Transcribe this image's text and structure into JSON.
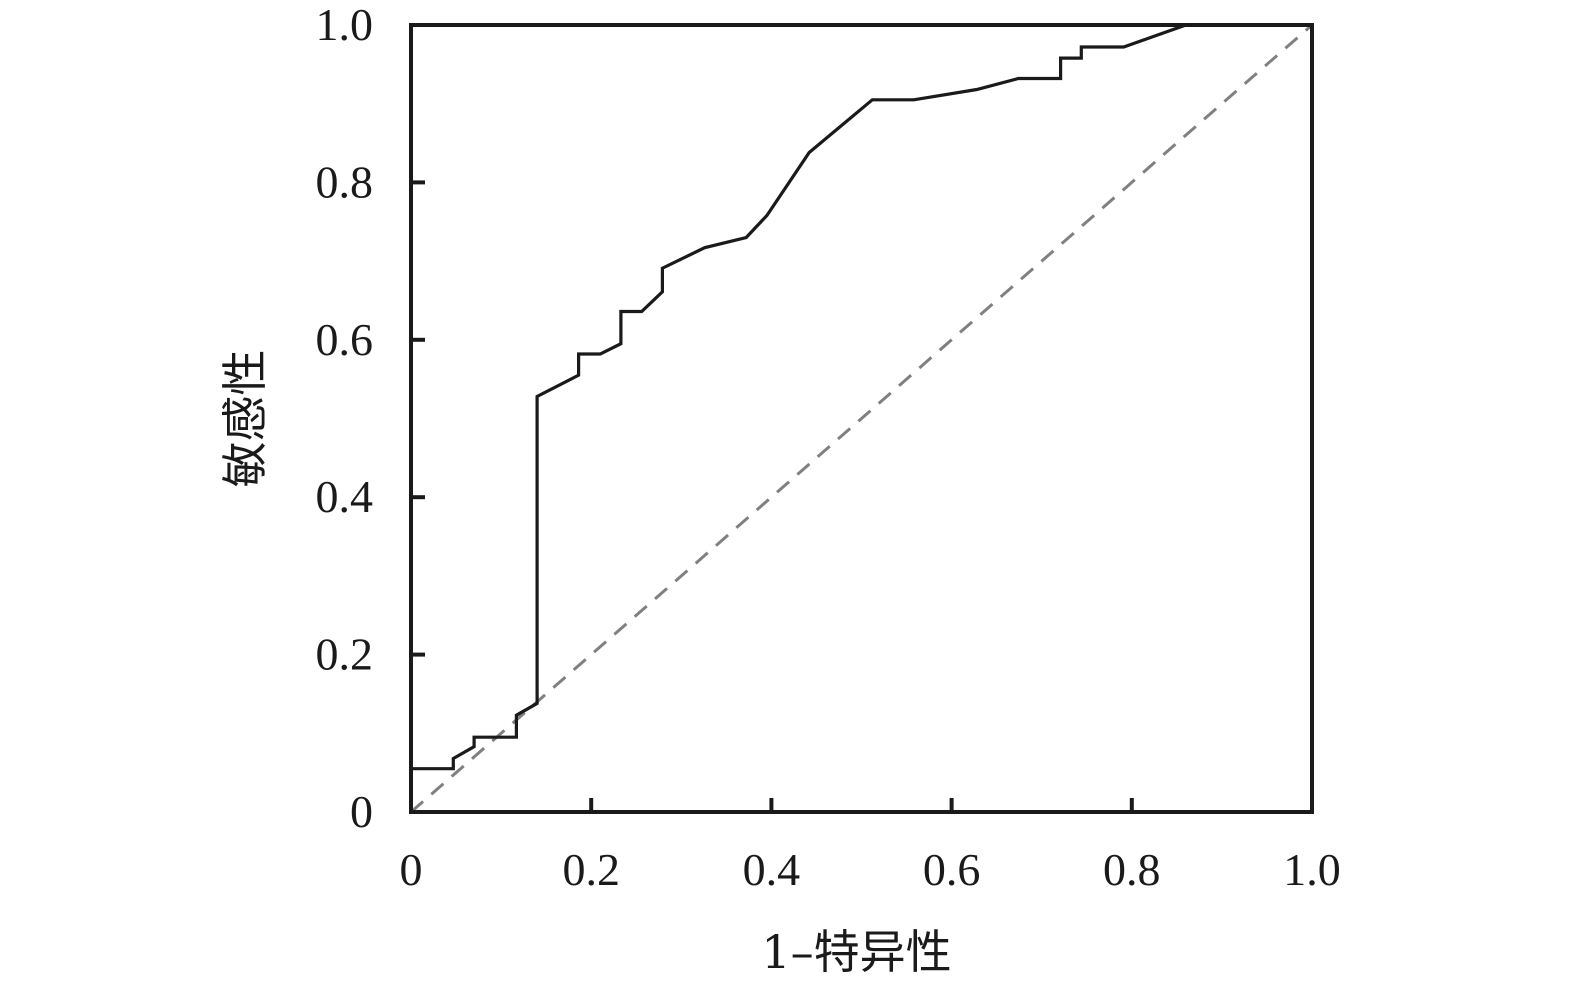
{
  "chart_data": {
    "type": "line",
    "title": "",
    "xlabel": "1–特异性",
    "ylabel": "敏感性",
    "xlim": [
      0,
      1.0
    ],
    "ylim": [
      0,
      1.0
    ],
    "grid": false,
    "x_ticks": [
      {
        "value": 0,
        "label": "0"
      },
      {
        "value": 0.2,
        "label": "0.2"
      },
      {
        "value": 0.4,
        "label": "0.4"
      },
      {
        "value": 0.6,
        "label": "0.6"
      },
      {
        "value": 0.8,
        "label": "0.8"
      },
      {
        "value": 1.0,
        "label": "1.0"
      }
    ],
    "y_ticks": [
      {
        "value": 0,
        "label": "0"
      },
      {
        "value": 0.2,
        "label": "0.2"
      },
      {
        "value": 0.4,
        "label": "0.4"
      },
      {
        "value": 0.6,
        "label": "0.6"
      },
      {
        "value": 0.8,
        "label": "0.8"
      },
      {
        "value": 1.0,
        "label": "1.0"
      }
    ],
    "series": [
      {
        "style": "solid",
        "color": "#1a1a1a",
        "points": [
          [
            0.0,
            0.055
          ],
          [
            0.047,
            0.055
          ],
          [
            0.047,
            0.068
          ],
          [
            0.07,
            0.083
          ],
          [
            0.07,
            0.095
          ],
          [
            0.117,
            0.095
          ],
          [
            0.117,
            0.123
          ],
          [
            0.14,
            0.138
          ],
          [
            0.14,
            0.528
          ],
          [
            0.186,
            0.555
          ],
          [
            0.186,
            0.582
          ],
          [
            0.21,
            0.582
          ],
          [
            0.233,
            0.595
          ],
          [
            0.233,
            0.636
          ],
          [
            0.256,
            0.636
          ],
          [
            0.279,
            0.661
          ],
          [
            0.279,
            0.691
          ],
          [
            0.326,
            0.717
          ],
          [
            0.372,
            0.73
          ],
          [
            0.395,
            0.758
          ],
          [
            0.442,
            0.838
          ],
          [
            0.512,
            0.905
          ],
          [
            0.558,
            0.905
          ],
          [
            0.628,
            0.918
          ],
          [
            0.674,
            0.932
          ],
          [
            0.721,
            0.932
          ],
          [
            0.721,
            0.958
          ],
          [
            0.744,
            0.958
          ],
          [
            0.744,
            0.972
          ],
          [
            0.791,
            0.972
          ],
          [
            0.86,
            1.0
          ],
          [
            1.0,
            1.0
          ]
        ]
      },
      {
        "style": "dashed",
        "color": "#808080",
        "points": [
          [
            0,
            0
          ],
          [
            1.0,
            1.0
          ]
        ]
      }
    ]
  }
}
